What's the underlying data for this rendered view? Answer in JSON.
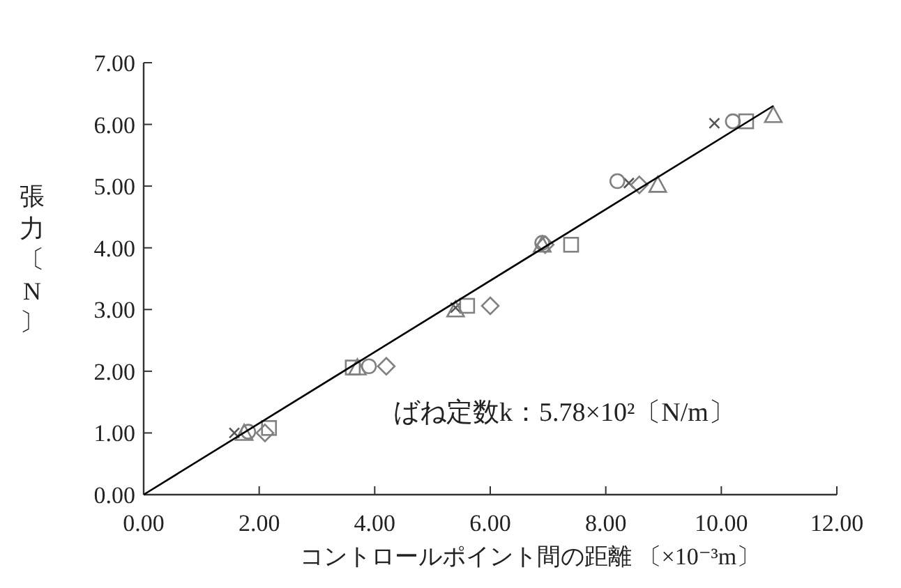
{
  "chart_data": {
    "type": "scatter",
    "xlabel": "コントロールポイント間の距離 〔×10⁻³m〕",
    "ylabel": "張力〔N〕",
    "xlim": [
      0,
      12
    ],
    "ylim": [
      0,
      7
    ],
    "xticks": [
      {
        "value": 0,
        "label": "0.00"
      },
      {
        "value": 2,
        "label": "2.00"
      },
      {
        "value": 4,
        "label": "4.00"
      },
      {
        "value": 6,
        "label": "6.00"
      },
      {
        "value": 8,
        "label": "8.00"
      },
      {
        "value": 10,
        "label": "10.00"
      },
      {
        "value": 12,
        "label": "12.00"
      }
    ],
    "yticks": [
      {
        "value": 0,
        "label": "0.00"
      },
      {
        "value": 1,
        "label": "1.00"
      },
      {
        "value": 2,
        "label": "2.00"
      },
      {
        "value": 3,
        "label": "3.00"
      },
      {
        "value": 4,
        "label": "4.00"
      },
      {
        "value": 5,
        "label": "5.00"
      },
      {
        "value": 6,
        "label": "6.00"
      },
      {
        "value": 7,
        "label": "7.00"
      }
    ],
    "annotations": [
      "ばね定数k：5.78×10²〔N/m〕"
    ],
    "grid": false,
    "series": [
      {
        "type": "scatter",
        "marker": "cross",
        "color": "#555555",
        "x": [
          1.57,
          5.4,
          8.4,
          9.88
        ],
        "values": [
          1.0,
          3.03,
          5.05,
          6.02
        ]
      },
      {
        "type": "scatter",
        "marker": "circle",
        "color": "#808080",
        "x": [
          1.81,
          3.9,
          6.9,
          8.2,
          10.2
        ],
        "values": [
          1.02,
          2.08,
          4.08,
          5.08,
          6.05
        ]
      },
      {
        "type": "scatter",
        "marker": "square",
        "color": "#808080",
        "x": [
          2.17,
          3.62,
          5.6,
          7.4,
          10.43
        ],
        "values": [
          1.08,
          2.06,
          3.06,
          4.05,
          6.05
        ]
      },
      {
        "type": "scatter",
        "marker": "triangle",
        "color": "#808080",
        "x": [
          1.74,
          3.7,
          5.4,
          6.9,
          8.9,
          10.9
        ],
        "values": [
          1.0,
          2.06,
          3.0,
          4.05,
          5.02,
          6.15
        ]
      },
      {
        "type": "scatter",
        "marker": "diamond",
        "color": "#808080",
        "x": [
          2.1,
          4.2,
          6.0,
          6.95,
          8.58
        ],
        "values": [
          1.0,
          2.08,
          3.06,
          4.05,
          5.02
        ]
      },
      {
        "type": "line",
        "marker": "none",
        "line_style": "solid",
        "color": "#000000",
        "x": [
          0,
          10.9
        ],
        "values": [
          0,
          6.3
        ]
      }
    ]
  }
}
